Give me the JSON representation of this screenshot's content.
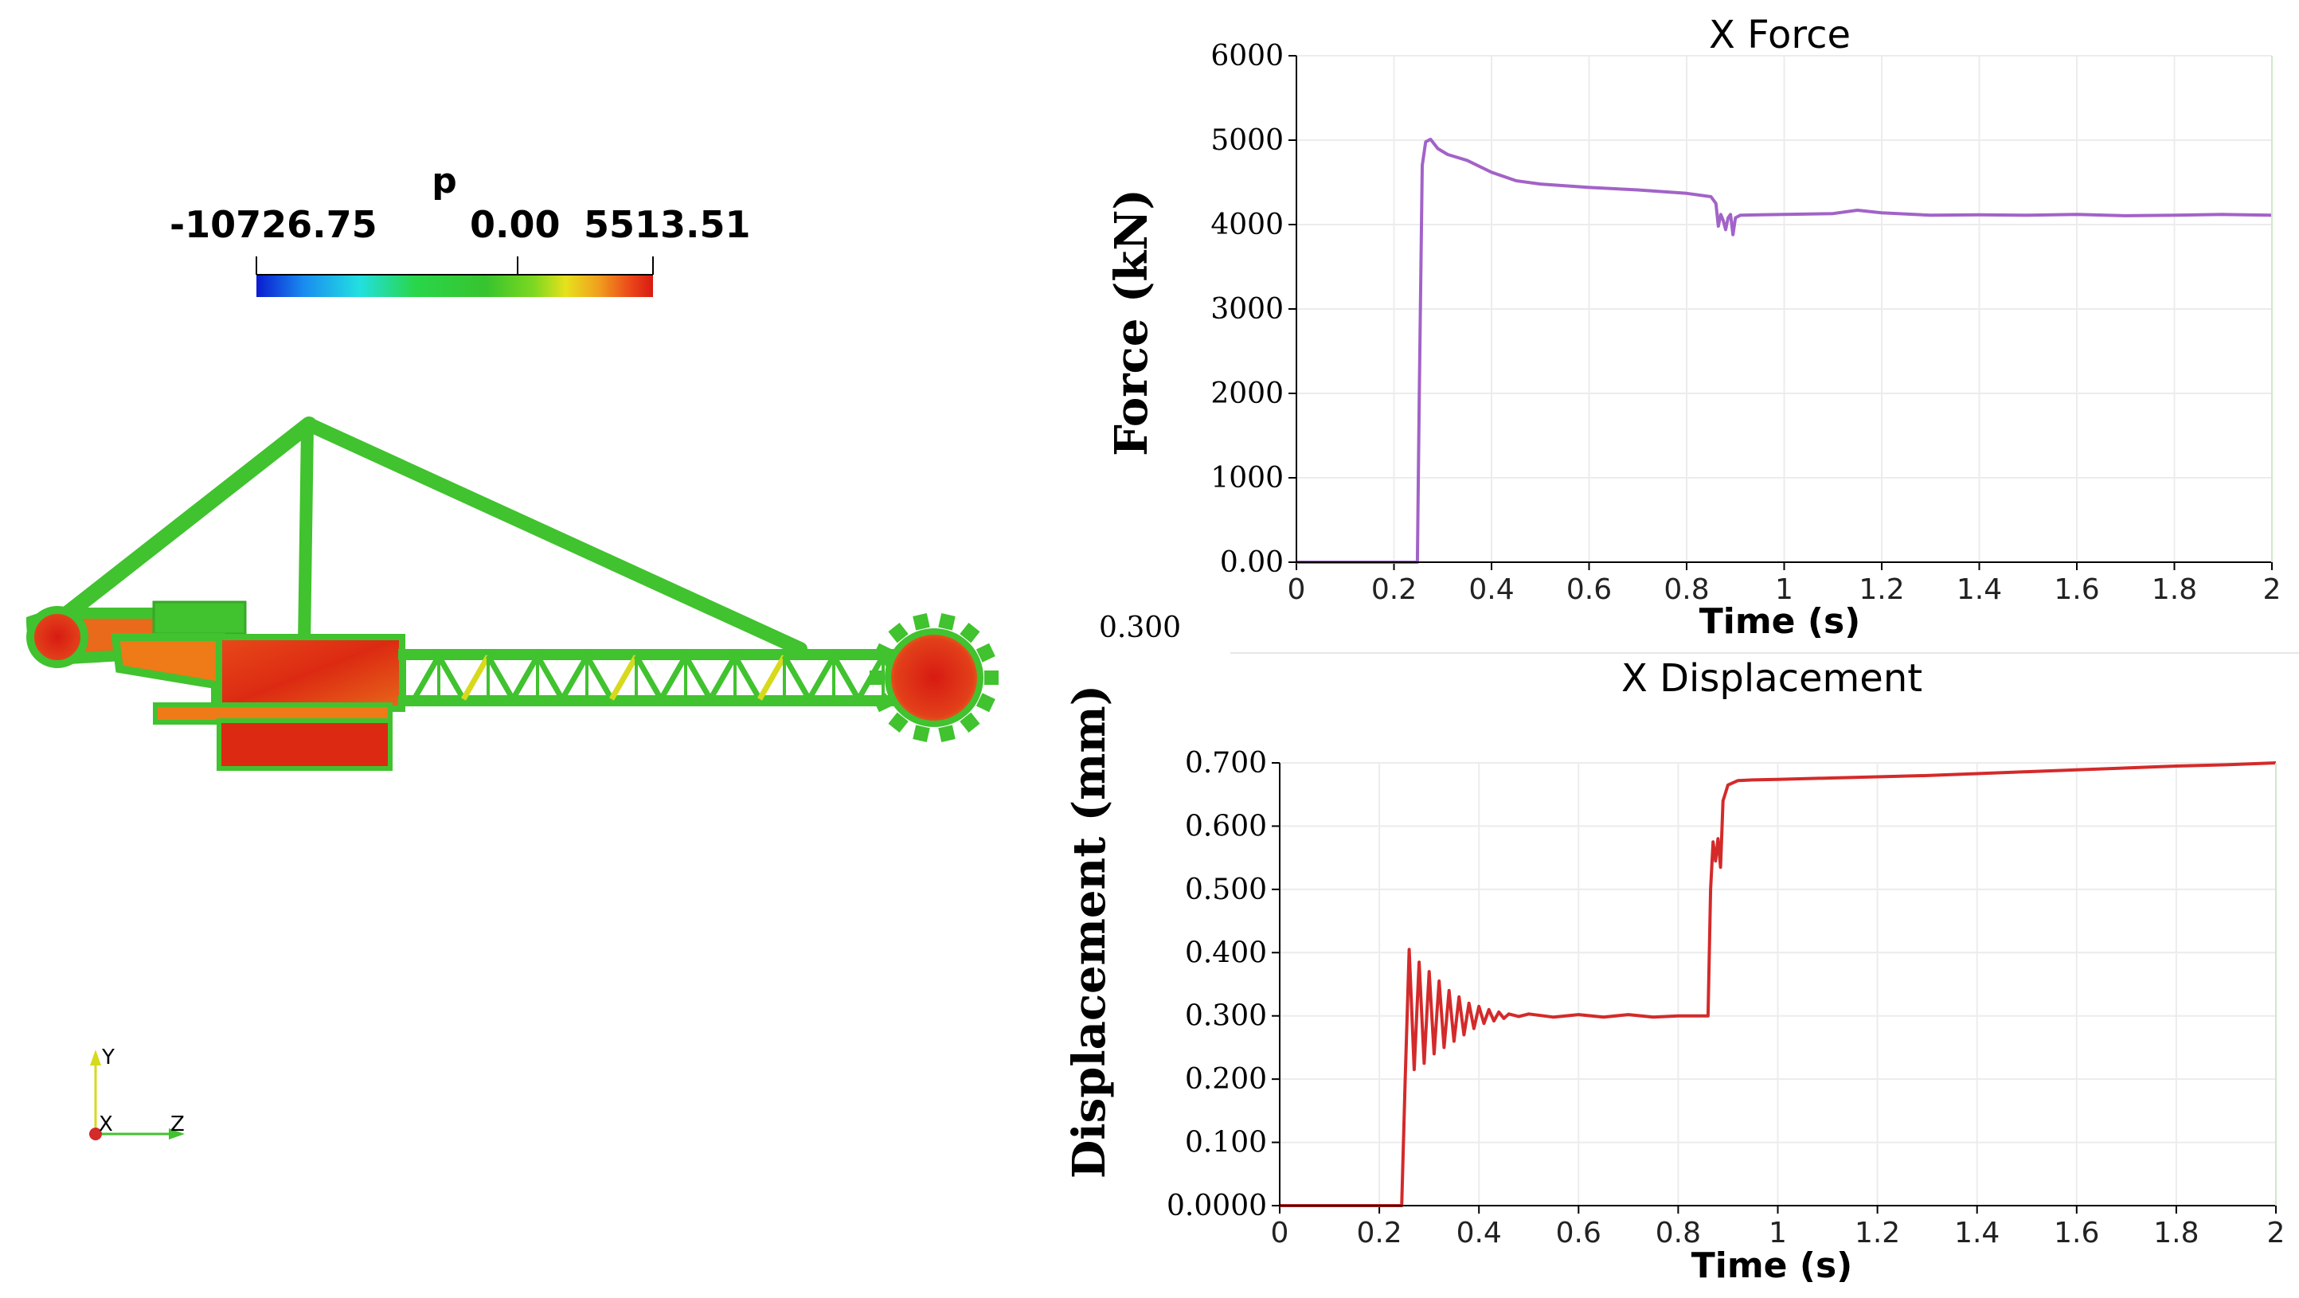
{
  "colorbar": {
    "label": "p",
    "min_label": "-10726.75",
    "mid_label": "0.00",
    "max_label": "5513.51",
    "colors": [
      "#0a1ccf",
      "#1a8cf0",
      "#22e0e0",
      "#29d64a",
      "#37c42e",
      "#7ed820",
      "#e6e11c",
      "#f0a21e",
      "#ec4a1a",
      "#d81a12"
    ]
  },
  "model_colors": {
    "green": "#41c22f",
    "yellow": "#d7d91c",
    "orange": "#ee7a18",
    "red": "#dc2a12"
  },
  "axes_triad": {
    "y_label": "Y",
    "x_label": "X",
    "z_label": "Z"
  },
  "stray_label": "0.300",
  "chart_data": [
    {
      "type": "line",
      "title": "X Force",
      "xlabel": "Time (s)",
      "ylabel": "Force (kN)",
      "xlim": [
        0,
        2
      ],
      "ylim": [
        0,
        6000
      ],
      "x_ticks": [
        0,
        0.2,
        0.4,
        0.6,
        0.8,
        1,
        1.2,
        1.4,
        1.6,
        1.8,
        2
      ],
      "x_tick_labels": [
        "0",
        "0.2",
        "0.4",
        "0.6",
        "0.8",
        "1",
        "1.2",
        "1.4",
        "1.6",
        "1.8",
        "2"
      ],
      "y_ticks": [
        0,
        1000,
        2000,
        3000,
        4000,
        5000,
        6000
      ],
      "y_tick_labels": [
        "0.00",
        "1000",
        "2000",
        "3000",
        "4000",
        "5000",
        "6000"
      ],
      "series": [
        {
          "name": "X Force",
          "color": "#a263c8",
          "x": [
            0,
            0.24,
            0.248,
            0.252,
            0.258,
            0.265,
            0.275,
            0.29,
            0.31,
            0.35,
            0.4,
            0.45,
            0.5,
            0.6,
            0.7,
            0.8,
            0.85,
            0.86,
            0.865,
            0.87,
            0.875,
            0.88,
            0.885,
            0.89,
            0.895,
            0.9,
            0.91,
            0.95,
            1.0,
            1.1,
            1.15,
            1.2,
            1.3,
            1.4,
            1.5,
            1.6,
            1.7,
            1.8,
            1.9,
            2.0
          ],
          "y": [
            0,
            0,
            0,
            2000,
            4700,
            4980,
            5010,
            4900,
            4830,
            4760,
            4620,
            4520,
            4480,
            4440,
            4410,
            4370,
            4330,
            4250,
            3980,
            4120,
            4050,
            3940,
            4080,
            4120,
            3880,
            4080,
            4110,
            4115,
            4120,
            4130,
            4170,
            4140,
            4110,
            4115,
            4110,
            4120,
            4105,
            4110,
            4120,
            4110
          ]
        }
      ]
    },
    {
      "type": "line",
      "title": "X Displacement",
      "xlabel": "Time (s)",
      "ylabel": "Displacement (mm)",
      "xlim": [
        0,
        2
      ],
      "ylim": [
        0,
        0.7
      ],
      "x_ticks": [
        0,
        0.2,
        0.4,
        0.6,
        0.8,
        1,
        1.2,
        1.4,
        1.6,
        1.8,
        2
      ],
      "x_tick_labels": [
        "0",
        "0.2",
        "0.4",
        "0.6",
        "0.8",
        "1",
        "1.2",
        "1.4",
        "1.6",
        "1.8",
        "2"
      ],
      "y_ticks": [
        0,
        0.1,
        0.2,
        0.3,
        0.4,
        0.5,
        0.6,
        0.7
      ],
      "y_tick_labels": [
        "0.0000",
        "0.100",
        "0.200",
        "0.300",
        "0.400",
        "0.500",
        "0.600",
        "0.700"
      ],
      "series": [
        {
          "name": "X Displacement",
          "color": "#d42a2a",
          "x": [
            0,
            0.24,
            0.245,
            0.252,
            0.26,
            0.27,
            0.28,
            0.29,
            0.3,
            0.31,
            0.32,
            0.33,
            0.34,
            0.35,
            0.36,
            0.37,
            0.38,
            0.39,
            0.4,
            0.41,
            0.42,
            0.43,
            0.44,
            0.45,
            0.46,
            0.48,
            0.5,
            0.55,
            0.6,
            0.65,
            0.7,
            0.75,
            0.8,
            0.84,
            0.86,
            0.865,
            0.87,
            0.875,
            0.88,
            0.885,
            0.89,
            0.9,
            0.92,
            0.95,
            1.0,
            1.1,
            1.2,
            1.3,
            1.4,
            1.5,
            1.6,
            1.7,
            1.8,
            1.9,
            2.0
          ],
          "y": [
            0,
            0,
            0,
            0.2,
            0.405,
            0.215,
            0.385,
            0.225,
            0.37,
            0.24,
            0.355,
            0.25,
            0.34,
            0.26,
            0.33,
            0.27,
            0.32,
            0.28,
            0.315,
            0.288,
            0.31,
            0.292,
            0.306,
            0.296,
            0.303,
            0.299,
            0.303,
            0.298,
            0.302,
            0.298,
            0.302,
            0.298,
            0.3,
            0.3,
            0.3,
            0.5,
            0.575,
            0.545,
            0.58,
            0.535,
            0.64,
            0.665,
            0.672,
            0.673,
            0.674,
            0.676,
            0.678,
            0.68,
            0.683,
            0.686,
            0.689,
            0.692,
            0.695,
            0.697,
            0.7
          ]
        }
      ]
    }
  ]
}
